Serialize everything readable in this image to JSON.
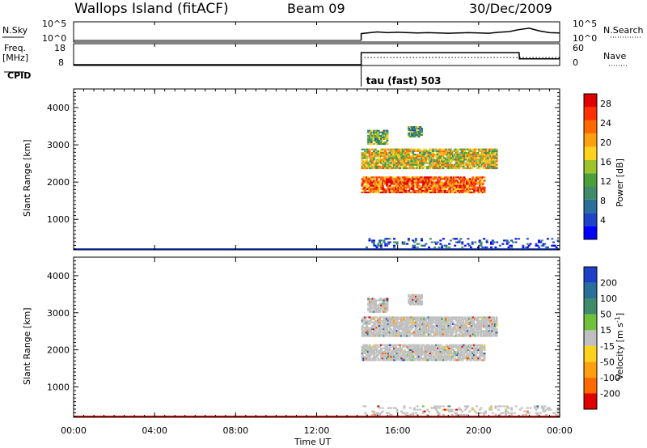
{
  "header": {
    "station": "Wallops Island (fitACF)",
    "beam": "Beam 09",
    "date": "30/Dec/2009"
  },
  "top_panels": {
    "nsky_label": "N.Sky",
    "nsearch_label": "N.Search",
    "nsky_ticks": [
      "10^5",
      "10^0"
    ],
    "nsearch_ticks": [
      "10^5",
      "10^0"
    ],
    "freq_label": "Freq.",
    "freq_unit": "[MHz]",
    "freq_ticks": [
      "18",
      "8"
    ],
    "nave_label": "Nave",
    "nave_ticks": [
      "60",
      "0"
    ],
    "cpid_label": "CPID",
    "cpid_value": "tau (fast) 503"
  },
  "x_axis": {
    "label": "Time UT",
    "ticks": [
      "00:00",
      "04:00",
      "08:00",
      "12:00",
      "16:00",
      "20:00",
      "00:00"
    ]
  },
  "chart_data": [
    {
      "type": "line",
      "title": "N.Sky / N.Search",
      "x": [
        14.2,
        14.5,
        15,
        15.5,
        16,
        16.5,
        17,
        17.5,
        18,
        18.5,
        19,
        19.5,
        20,
        20.5,
        21,
        21.5,
        22,
        22.5,
        23,
        23.5,
        24
      ],
      "series": [
        {
          "name": "N.Sky",
          "values": [
            2,
            2.2,
            2.5,
            2.3,
            2.4,
            2.3,
            2.2,
            2.3,
            2.2,
            2.1,
            2.2,
            2.3,
            2.2,
            2.1,
            2.4,
            2.6,
            3.2,
            3.6,
            2.8,
            2.3,
            2.2
          ]
        }
      ],
      "ylim": [
        0,
        5
      ],
      "yscale": "log"
    },
    {
      "type": "line",
      "title": "Freq. / Nave",
      "x": [
        14.2,
        22,
        22.01,
        24
      ],
      "series": [
        {
          "name": "Freq.",
          "values": [
            14.2,
            14.2,
            11.0,
            11.0
          ]
        },
        {
          "name": "Nave",
          "values": [
            22,
            22,
            22,
            22
          ]
        }
      ],
      "ylim": [
        8,
        18
      ]
    },
    {
      "type": "heatmap",
      "title": "",
      "xlabel": "Time UT",
      "ylabel": "Slant Range [km]",
      "xlim": [
        0,
        24
      ],
      "ylim": [
        180,
        4500
      ],
      "yticks": [
        1000,
        2000,
        3000,
        4000
      ],
      "colorbar": {
        "label": "Power [dB]",
        "ticks": [
          4,
          8,
          12,
          16,
          20,
          24,
          28
        ],
        "colors": [
          "#0000ff",
          "#1e44c8",
          "#2a6e9a",
          "#3f8c6a",
          "#4ba03a",
          "#9ec22a",
          "#ffd21e",
          "#ffa010",
          "#ff6a00",
          "#ff3000",
          "#e00000"
        ]
      },
      "regions": [
        {
          "t0": 14.2,
          "t1": 20.9,
          "r0": 2350,
          "r1": 2900,
          "level": 0.55
        },
        {
          "t0": 14.2,
          "t1": 20.3,
          "r0": 1700,
          "r1": 2150,
          "level": 0.8
        },
        {
          "t0": 14.5,
          "t1": 15.5,
          "r0": 3000,
          "r1": 3400,
          "level": 0.4
        },
        {
          "t0": 16.5,
          "t1": 17.2,
          "r0": 3200,
          "r1": 3500,
          "level": 0.35
        },
        {
          "t0": 14.2,
          "t1": 24,
          "r0": 180,
          "r1": 500,
          "level": 0.15
        }
      ]
    },
    {
      "type": "heatmap",
      "title": "",
      "xlabel": "Time UT",
      "ylabel": "Slant Range [km]",
      "xlim": [
        0,
        24
      ],
      "ylim": [
        180,
        4500
      ],
      "yticks": [
        1000,
        2000,
        3000,
        4000
      ],
      "colorbar": {
        "label": "Velocity [m s^-1]",
        "ticks": [
          200,
          100,
          50,
          15,
          -15,
          -50,
          -100,
          -200
        ],
        "colors": [
          "#1e40c8",
          "#2a6e9a",
          "#3f8c6a",
          "#6fc23a",
          "#c0c0c0",
          "#ffd21e",
          "#ffa010",
          "#ff6a00",
          "#e00000"
        ]
      },
      "regions": [
        {
          "t0": 14.2,
          "t1": 20.9,
          "r0": 2350,
          "r1": 2900,
          "level": 0.5
        },
        {
          "t0": 14.2,
          "t1": 20.3,
          "r0": 1700,
          "r1": 2150,
          "level": 0.5
        },
        {
          "t0": 14.5,
          "t1": 15.5,
          "r0": 3000,
          "r1": 3400,
          "level": 0.5
        },
        {
          "t0": 16.5,
          "t1": 17.2,
          "r0": 3200,
          "r1": 3500,
          "level": 0.5
        },
        {
          "t0": 14.2,
          "t1": 24,
          "r0": 180,
          "r1": 500,
          "level": 0.5
        }
      ]
    }
  ]
}
